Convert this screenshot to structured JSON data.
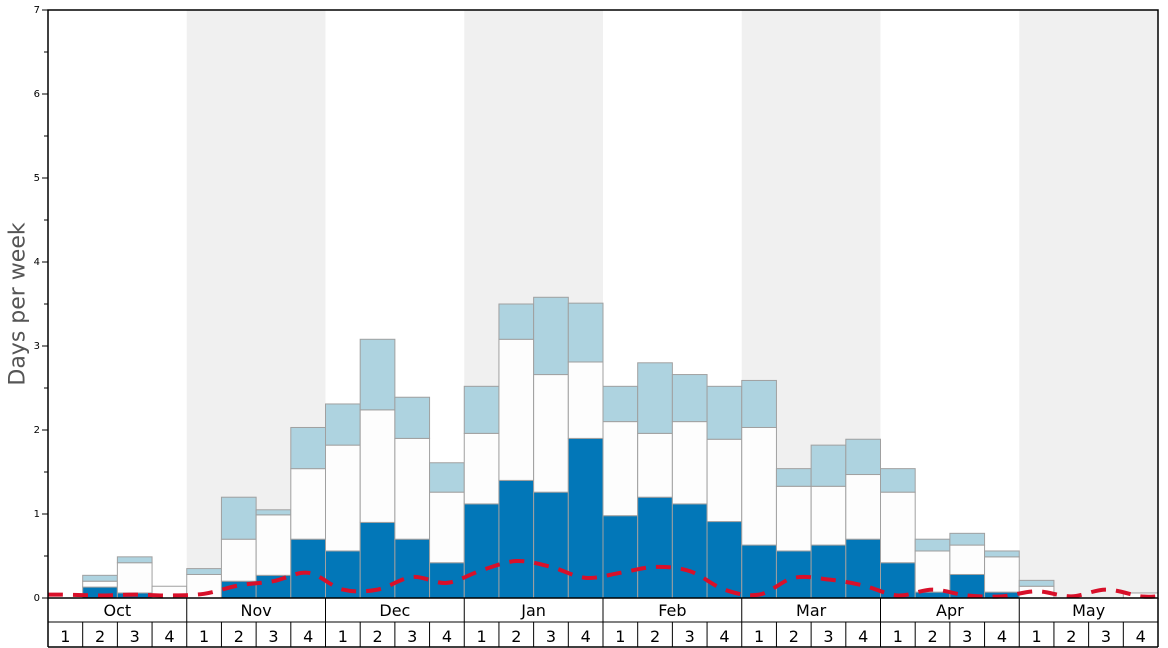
{
  "chart_data": {
    "type": "bar",
    "stacked": true,
    "title": "",
    "xlabel": "",
    "ylabel": "Days per week",
    "ylim": [
      0,
      7
    ],
    "yticks": [
      "0",
      "1",
      "2",
      "3",
      "4",
      "5",
      "6",
      "7"
    ],
    "months": [
      "Oct",
      "Nov",
      "Dec",
      "Jan",
      "Feb",
      "Mar",
      "Apr",
      "May"
    ],
    "weeks": [
      "1",
      "2",
      "3",
      "4"
    ],
    "colors": {
      "bottom": "#0277b8",
      "middle": "#fdfdfd",
      "top": "#aed3e0",
      "edge": "#a0a0a0",
      "band": "#f0f0f0",
      "line": "#d8102a"
    },
    "series": [
      {
        "layer": "bottom",
        "values": [
          0.0,
          0.13,
          0.06,
          0.0,
          0.0,
          0.2,
          0.27,
          0.7,
          0.56,
          0.9,
          0.7,
          0.42,
          1.12,
          1.4,
          1.26,
          1.9,
          0.98,
          1.2,
          1.12,
          0.91,
          0.63,
          0.56,
          0.63,
          0.7,
          0.42,
          0.07,
          0.28,
          0.07,
          0.0,
          0.0,
          0.0,
          0.0
        ]
      },
      {
        "layer": "middle",
        "values": [
          0.0,
          0.07,
          0.36,
          0.14,
          0.28,
          0.5,
          0.72,
          0.84,
          1.26,
          1.34,
          1.2,
          0.84,
          0.84,
          1.68,
          1.4,
          0.91,
          1.12,
          0.76,
          0.98,
          0.98,
          1.4,
          0.77,
          0.7,
          0.77,
          0.84,
          0.49,
          0.35,
          0.42,
          0.14,
          0.0,
          0.0,
          0.06
        ]
      },
      {
        "layer": "top",
        "values": [
          0.0,
          0.07,
          0.07,
          0.0,
          0.07,
          0.5,
          0.06,
          0.49,
          0.49,
          0.84,
          0.49,
          0.35,
          0.56,
          0.42,
          0.92,
          0.7,
          0.42,
          0.84,
          0.56,
          0.63,
          0.56,
          0.21,
          0.49,
          0.42,
          0.28,
          0.14,
          0.14,
          0.07,
          0.07,
          0.0,
          0.0,
          0.0
        ]
      },
      {
        "layer": "line",
        "values": [
          0.04,
          0.03,
          0.04,
          0.03,
          0.05,
          0.15,
          0.2,
          0.3,
          0.1,
          0.1,
          0.25,
          0.18,
          0.33,
          0.44,
          0.37,
          0.24,
          0.3,
          0.37,
          0.32,
          0.1,
          0.04,
          0.24,
          0.22,
          0.15,
          0.03,
          0.1,
          0.03,
          0.02,
          0.08,
          0.02,
          0.1,
          0.02
        ]
      }
    ]
  }
}
